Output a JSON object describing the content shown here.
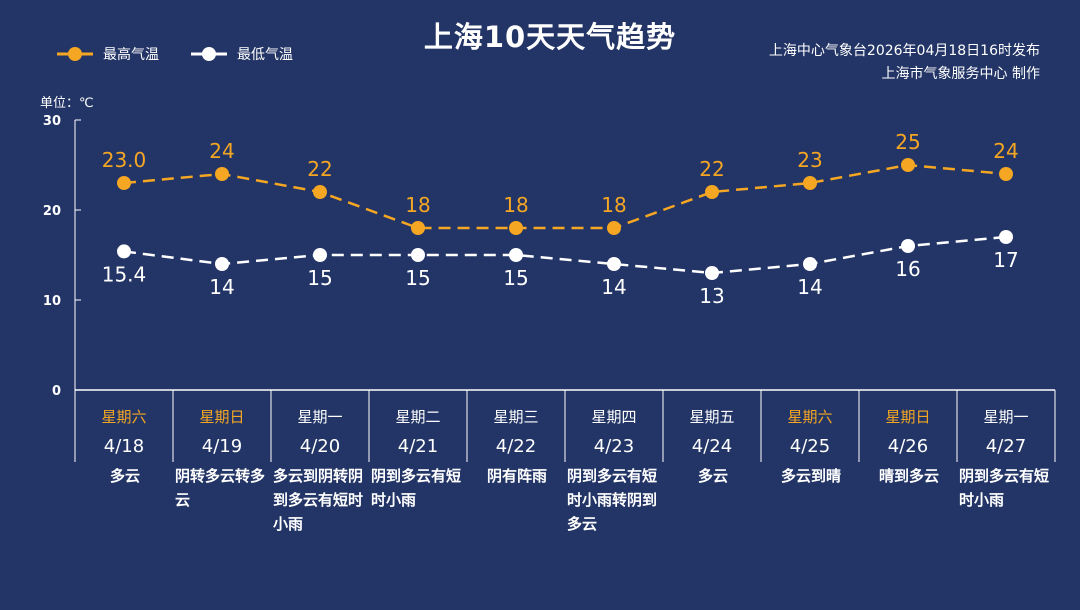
{
  "header": {
    "title": "上海10天天气趋势",
    "publisher_line1": "上海中心气象台2026年04月18日16时发布",
    "publisher_line2": "上海市气象服务中心  制作"
  },
  "colors": {
    "background": "#233566",
    "high": "#f5a623",
    "low": "#ffffff",
    "weekend": "#f5a623"
  },
  "chart_data": {
    "type": "line",
    "title": "上海10天天气趋势",
    "ylabel": "单位：℃",
    "ylim": [
      0,
      30
    ],
    "yticks": [
      "0",
      "10",
      "20",
      "30"
    ],
    "grid": false,
    "legend": "top-left",
    "categories": [
      "4/18",
      "4/19",
      "4/20",
      "4/21",
      "4/22",
      "4/23",
      "4/24",
      "4/25",
      "4/26",
      "4/27"
    ],
    "series": [
      {
        "name": "最高气温",
        "values": [
          23.0,
          24,
          22,
          18,
          18,
          18,
          22,
          23,
          25,
          24
        ],
        "labels": [
          "23.0",
          "24",
          "22",
          "18",
          "18",
          "18",
          "22",
          "23",
          "25",
          "24"
        ]
      },
      {
        "name": "最低气温",
        "values": [
          15.4,
          14,
          15,
          15,
          15,
          14,
          13,
          14,
          16,
          17
        ],
        "labels": [
          "15.4",
          "14",
          "15",
          "15",
          "15",
          "14",
          "13",
          "14",
          "16",
          "17"
        ]
      }
    ]
  },
  "days": [
    {
      "weekday": "星期六",
      "date": "4/18",
      "weather": "多云",
      "weekend": true
    },
    {
      "weekday": "星期日",
      "date": "4/19",
      "weather": "阴转多云转多云",
      "weekend": true
    },
    {
      "weekday": "星期一",
      "date": "4/20",
      "weather": "多云到阴转阴到多云有短时小雨",
      "weekend": false
    },
    {
      "weekday": "星期二",
      "date": "4/21",
      "weather": "阴到多云有短时小雨",
      "weekend": false
    },
    {
      "weekday": "星期三",
      "date": "4/22",
      "weather": "阴有阵雨",
      "weekend": false
    },
    {
      "weekday": "星期四",
      "date": "4/23",
      "weather": "阴到多云有短时小雨转阴到多云",
      "weekend": false
    },
    {
      "weekday": "星期五",
      "date": "4/24",
      "weather": "多云",
      "weekend": false
    },
    {
      "weekday": "星期六",
      "date": "4/25",
      "weather": "多云到晴",
      "weekend": true
    },
    {
      "weekday": "星期日",
      "date": "4/26",
      "weather": "晴到多云",
      "weekend": true
    },
    {
      "weekday": "星期一",
      "date": "4/27",
      "weather": "阴到多云有短时小雨",
      "weekend": false
    }
  ]
}
